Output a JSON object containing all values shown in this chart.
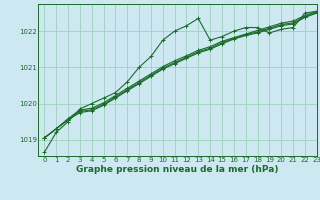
{
  "title": "Graphe pression niveau de la mer (hPa)",
  "background_color": "#cde8f0",
  "grid_color": "#9ecfbe",
  "line_color": "#1a6b2a",
  "xlim": [
    -0.5,
    23
  ],
  "ylim": [
    1018.55,
    1022.75
  ],
  "yticks": [
    1019,
    1020,
    1021,
    1022
  ],
  "xticks": [
    0,
    1,
    2,
    3,
    4,
    5,
    6,
    7,
    8,
    9,
    10,
    11,
    12,
    13,
    14,
    15,
    16,
    17,
    18,
    19,
    20,
    21,
    22,
    23
  ],
  "series": [
    [
      1018.65,
      1019.2,
      1019.5,
      1019.85,
      1020.0,
      1020.15,
      1020.3,
      1020.6,
      1021.0,
      1021.3,
      1021.75,
      1022.0,
      1022.15,
      1022.35,
      1021.75,
      1021.85,
      1022.0,
      1022.1,
      1022.1,
      1021.95,
      1022.05,
      1022.1,
      1022.5,
      1022.55
    ],
    [
      1019.05,
      1019.3,
      1019.55,
      1019.75,
      1019.8,
      1019.95,
      1020.15,
      1020.35,
      1020.55,
      1020.75,
      1020.95,
      1021.1,
      1021.25,
      1021.4,
      1021.5,
      1021.65,
      1021.78,
      1021.88,
      1021.95,
      1022.05,
      1022.15,
      1022.2,
      1022.38,
      1022.5
    ],
    [
      1019.05,
      1019.3,
      1019.55,
      1019.78,
      1019.83,
      1019.98,
      1020.18,
      1020.38,
      1020.58,
      1020.78,
      1020.98,
      1021.13,
      1021.28,
      1021.43,
      1021.53,
      1021.68,
      1021.8,
      1021.9,
      1021.98,
      1022.08,
      1022.18,
      1022.23,
      1022.4,
      1022.52
    ],
    [
      1019.05,
      1019.3,
      1019.58,
      1019.82,
      1019.87,
      1020.02,
      1020.22,
      1020.42,
      1020.62,
      1020.82,
      1021.02,
      1021.18,
      1021.32,
      1021.47,
      1021.57,
      1021.72,
      1021.82,
      1021.92,
      1022.02,
      1022.12,
      1022.22,
      1022.28,
      1022.43,
      1022.55
    ]
  ],
  "marker": "+",
  "marker_size": 3,
  "linewidth": 0.8,
  "tick_fontsize": 5.0,
  "xlabel_fontsize": 6.5
}
